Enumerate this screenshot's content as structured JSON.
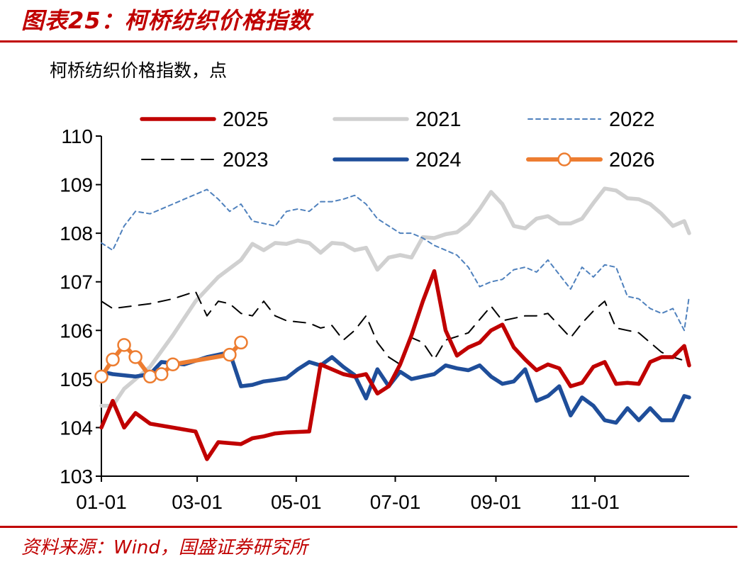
{
  "figure": {
    "title": "图表25：柯桥纺织价格指数",
    "source": "资料来源：Wind，国盛证券研究所"
  },
  "chart_data": {
    "type": "line",
    "title": "",
    "ylabel": "柯桥纺织价格指数，点",
    "xlabel": "",
    "x_unit": "MM-DD",
    "x_range": [
      "01-01",
      "12-29"
    ],
    "ylim": [
      103,
      110
    ],
    "yticks": [
      103,
      104,
      105,
      106,
      107,
      108,
      109,
      110
    ],
    "xticks": [
      "01-01",
      "03-01",
      "05-01",
      "07-01",
      "09-01",
      "11-01"
    ],
    "grid": false,
    "legend_position": "top",
    "series": [
      {
        "name": "2025",
        "color": "#c00000",
        "style": "solid-thick",
        "marker": "none",
        "points": [
          [
            "01-01",
            104.0
          ],
          [
            "01-08",
            104.55
          ],
          [
            "01-15",
            104.0
          ],
          [
            "01-22",
            104.3
          ],
          [
            "01-31",
            104.08
          ],
          [
            "02-28",
            103.92
          ],
          [
            "03-07",
            103.35
          ],
          [
            "03-14",
            103.7
          ],
          [
            "03-28",
            103.66
          ],
          [
            "04-04",
            103.78
          ],
          [
            "04-11",
            103.82
          ],
          [
            "04-18",
            103.88
          ],
          [
            "04-25",
            103.9
          ],
          [
            "05-09",
            103.92
          ],
          [
            "05-16",
            105.3
          ],
          [
            "05-30",
            105.1
          ],
          [
            "06-06",
            105.05
          ],
          [
            "06-13",
            105.1
          ],
          [
            "06-20",
            104.7
          ],
          [
            "06-27",
            104.85
          ],
          [
            "07-04",
            105.3
          ],
          [
            "07-11",
            105.9
          ],
          [
            "07-18",
            106.6
          ],
          [
            "07-25",
            107.22
          ],
          [
            "08-01",
            106.0
          ],
          [
            "08-08",
            105.48
          ],
          [
            "08-15",
            105.65
          ],
          [
            "08-22",
            105.75
          ],
          [
            "08-29",
            106.0
          ],
          [
            "09-05",
            106.12
          ],
          [
            "09-12",
            105.65
          ],
          [
            "09-19",
            105.4
          ],
          [
            "09-26",
            105.18
          ],
          [
            "10-03",
            105.3
          ],
          [
            "10-10",
            105.22
          ],
          [
            "10-17",
            104.85
          ],
          [
            "10-24",
            104.92
          ],
          [
            "10-31",
            105.25
          ],
          [
            "11-07",
            105.35
          ],
          [
            "11-14",
            104.9
          ],
          [
            "11-21",
            104.92
          ],
          [
            "11-28",
            104.9
          ],
          [
            "12-05",
            105.35
          ],
          [
            "12-12",
            105.45
          ],
          [
            "12-19",
            105.45
          ],
          [
            "12-26",
            105.68
          ],
          [
            "12-29",
            105.28
          ]
        ]
      },
      {
        "name": "2021",
        "color": "#d0d0d0",
        "style": "solid-thick",
        "marker": "none",
        "points": [
          [
            "01-01",
            104.45
          ],
          [
            "01-08",
            104.45
          ],
          [
            "01-15",
            104.8
          ],
          [
            "01-31",
            105.25
          ],
          [
            "02-14",
            105.9
          ],
          [
            "02-28",
            106.6
          ],
          [
            "03-14",
            107.1
          ],
          [
            "03-28",
            107.45
          ],
          [
            "04-04",
            107.78
          ],
          [
            "04-11",
            107.65
          ],
          [
            "04-18",
            107.8
          ],
          [
            "04-25",
            107.78
          ],
          [
            "05-02",
            107.85
          ],
          [
            "05-09",
            107.8
          ],
          [
            "05-16",
            107.6
          ],
          [
            "05-23",
            107.8
          ],
          [
            "05-30",
            107.78
          ],
          [
            "06-06",
            107.65
          ],
          [
            "06-13",
            107.7
          ],
          [
            "06-20",
            107.25
          ],
          [
            "06-27",
            107.5
          ],
          [
            "07-04",
            107.55
          ],
          [
            "07-11",
            107.5
          ],
          [
            "07-18",
            107.92
          ],
          [
            "07-25",
            107.9
          ],
          [
            "08-01",
            107.98
          ],
          [
            "08-08",
            108.02
          ],
          [
            "08-15",
            108.2
          ],
          [
            "08-22",
            108.5
          ],
          [
            "08-29",
            108.85
          ],
          [
            "09-05",
            108.6
          ],
          [
            "09-12",
            108.15
          ],
          [
            "09-19",
            108.1
          ],
          [
            "09-26",
            108.3
          ],
          [
            "10-03",
            108.35
          ],
          [
            "10-10",
            108.2
          ],
          [
            "10-17",
            108.2
          ],
          [
            "10-24",
            108.3
          ],
          [
            "10-31",
            108.62
          ],
          [
            "11-07",
            108.92
          ],
          [
            "11-14",
            108.88
          ],
          [
            "11-21",
            108.72
          ],
          [
            "11-28",
            108.7
          ],
          [
            "12-05",
            108.6
          ],
          [
            "12-12",
            108.4
          ],
          [
            "12-19",
            108.15
          ],
          [
            "12-26",
            108.25
          ],
          [
            "12-29",
            108.0
          ]
        ]
      },
      {
        "name": "2022",
        "color": "#4f81bd",
        "style": "dotted",
        "marker": "none",
        "points": [
          [
            "01-01",
            107.8
          ],
          [
            "01-08",
            107.65
          ],
          [
            "01-15",
            108.15
          ],
          [
            "01-22",
            108.45
          ],
          [
            "01-31",
            108.4
          ],
          [
            "02-07",
            108.5
          ],
          [
            "02-14",
            108.6
          ],
          [
            "02-21",
            108.7
          ],
          [
            "02-28",
            108.8
          ],
          [
            "03-07",
            108.9
          ],
          [
            "03-14",
            108.7
          ],
          [
            "03-21",
            108.45
          ],
          [
            "03-28",
            108.6
          ],
          [
            "04-04",
            108.25
          ],
          [
            "04-11",
            108.2
          ],
          [
            "04-18",
            108.15
          ],
          [
            "04-25",
            108.45
          ],
          [
            "05-02",
            108.5
          ],
          [
            "05-09",
            108.45
          ],
          [
            "05-16",
            108.65
          ],
          [
            "05-23",
            108.65
          ],
          [
            "05-30",
            108.7
          ],
          [
            "06-06",
            108.78
          ],
          [
            "06-13",
            108.6
          ],
          [
            "06-20",
            108.3
          ],
          [
            "06-27",
            108.15
          ],
          [
            "07-04",
            108.0
          ],
          [
            "07-11",
            108.0
          ],
          [
            "07-18",
            107.9
          ],
          [
            "07-25",
            107.75
          ],
          [
            "08-01",
            107.65
          ],
          [
            "08-08",
            107.55
          ],
          [
            "08-15",
            107.3
          ],
          [
            "08-22",
            106.9
          ],
          [
            "08-29",
            107.0
          ],
          [
            "09-05",
            107.05
          ],
          [
            "09-12",
            107.25
          ],
          [
            "09-19",
            107.3
          ],
          [
            "09-26",
            107.2
          ],
          [
            "10-03",
            107.45
          ],
          [
            "10-10",
            107.15
          ],
          [
            "10-17",
            106.85
          ],
          [
            "10-24",
            107.3
          ],
          [
            "10-31",
            107.1
          ],
          [
            "11-07",
            107.35
          ],
          [
            "11-14",
            107.3
          ],
          [
            "11-21",
            106.7
          ],
          [
            "11-28",
            106.65
          ],
          [
            "12-05",
            106.45
          ],
          [
            "12-12",
            106.35
          ],
          [
            "12-19",
            106.45
          ],
          [
            "12-26",
            106.0
          ],
          [
            "12-29",
            106.7
          ]
        ]
      },
      {
        "name": "2023",
        "color": "#000000",
        "style": "dashed",
        "marker": "none",
        "points": [
          [
            "01-01",
            106.6
          ],
          [
            "01-08",
            106.45
          ],
          [
            "01-31",
            106.55
          ],
          [
            "02-14",
            106.65
          ],
          [
            "02-28",
            106.8
          ],
          [
            "03-07",
            106.3
          ],
          [
            "03-14",
            106.6
          ],
          [
            "03-21",
            106.55
          ],
          [
            "03-28",
            106.35
          ],
          [
            "04-04",
            106.3
          ],
          [
            "04-11",
            106.6
          ],
          [
            "04-18",
            106.3
          ],
          [
            "04-25",
            106.2
          ],
          [
            "05-09",
            106.15
          ],
          [
            "05-16",
            106.05
          ],
          [
            "05-23",
            106.1
          ],
          [
            "05-30",
            105.8
          ],
          [
            "06-06",
            106.0
          ],
          [
            "06-13",
            106.3
          ],
          [
            "06-20",
            105.75
          ],
          [
            "06-27",
            105.45
          ],
          [
            "07-04",
            105.3
          ],
          [
            "07-11",
            105.85
          ],
          [
            "07-18",
            105.75
          ],
          [
            "07-25",
            105.4
          ],
          [
            "08-01",
            105.8
          ],
          [
            "08-15",
            105.95
          ],
          [
            "08-29",
            106.5
          ],
          [
            "09-05",
            106.2
          ],
          [
            "09-19",
            106.3
          ],
          [
            "09-26",
            106.3
          ],
          [
            "10-03",
            106.35
          ],
          [
            "10-17",
            105.85
          ],
          [
            "10-24",
            106.15
          ],
          [
            "10-31",
            106.4
          ],
          [
            "11-07",
            106.6
          ],
          [
            "11-14",
            106.05
          ],
          [
            "11-21",
            106.0
          ],
          [
            "11-28",
            105.95
          ],
          [
            "12-05",
            105.75
          ],
          [
            "12-12",
            105.55
          ],
          [
            "12-19",
            105.45
          ],
          [
            "12-26",
            105.38
          ],
          [
            "12-29",
            105.35
          ]
        ]
      },
      {
        "name": "2024",
        "color": "#1f4e9a",
        "style": "solid-thick",
        "marker": "none",
        "points": [
          [
            "01-01",
            105.15
          ],
          [
            "01-08",
            105.1
          ],
          [
            "01-22",
            105.05
          ],
          [
            "01-31",
            105.1
          ],
          [
            "02-07",
            105.35
          ],
          [
            "02-21",
            105.3
          ],
          [
            "03-07",
            105.45
          ],
          [
            "03-14",
            105.5
          ],
          [
            "03-21",
            105.55
          ],
          [
            "03-28",
            104.85
          ],
          [
            "04-04",
            104.88
          ],
          [
            "04-11",
            104.95
          ],
          [
            "04-18",
            104.98
          ],
          [
            "04-25",
            105.02
          ],
          [
            "05-02",
            105.2
          ],
          [
            "05-09",
            105.35
          ],
          [
            "05-16",
            105.28
          ],
          [
            "05-23",
            105.45
          ],
          [
            "05-30",
            105.25
          ],
          [
            "06-06",
            105.08
          ],
          [
            "06-13",
            104.6
          ],
          [
            "06-20",
            105.2
          ],
          [
            "06-27",
            104.85
          ],
          [
            "07-04",
            105.15
          ],
          [
            "07-11",
            105.0
          ],
          [
            "07-18",
            105.05
          ],
          [
            "07-25",
            105.1
          ],
          [
            "08-01",
            105.28
          ],
          [
            "08-08",
            105.22
          ],
          [
            "08-15",
            105.18
          ],
          [
            "08-22",
            105.28
          ],
          [
            "08-29",
            105.05
          ],
          [
            "09-05",
            104.9
          ],
          [
            "09-12",
            104.95
          ],
          [
            "09-19",
            105.2
          ],
          [
            "09-26",
            104.55
          ],
          [
            "10-03",
            104.65
          ],
          [
            "10-10",
            104.85
          ],
          [
            "10-17",
            104.25
          ],
          [
            "10-24",
            104.62
          ],
          [
            "10-31",
            104.45
          ],
          [
            "11-07",
            104.15
          ],
          [
            "11-14",
            104.1
          ],
          [
            "11-21",
            104.4
          ],
          [
            "11-28",
            104.15
          ],
          [
            "12-05",
            104.4
          ],
          [
            "12-12",
            104.15
          ],
          [
            "12-19",
            104.15
          ],
          [
            "12-26",
            104.65
          ],
          [
            "12-29",
            104.62
          ]
        ]
      },
      {
        "name": "2026",
        "color": "#ed7d31",
        "style": "solid-thick",
        "marker": "open-circle",
        "points": [
          [
            "01-01",
            105.05
          ],
          [
            "01-08",
            105.4
          ],
          [
            "01-15",
            105.7
          ],
          [
            "01-22",
            105.45
          ],
          [
            "01-31",
            105.05
          ],
          [
            "02-07",
            105.1
          ],
          [
            "02-14",
            105.3
          ],
          [
            "03-21",
            105.5
          ],
          [
            "03-28",
            105.75
          ]
        ]
      }
    ]
  }
}
